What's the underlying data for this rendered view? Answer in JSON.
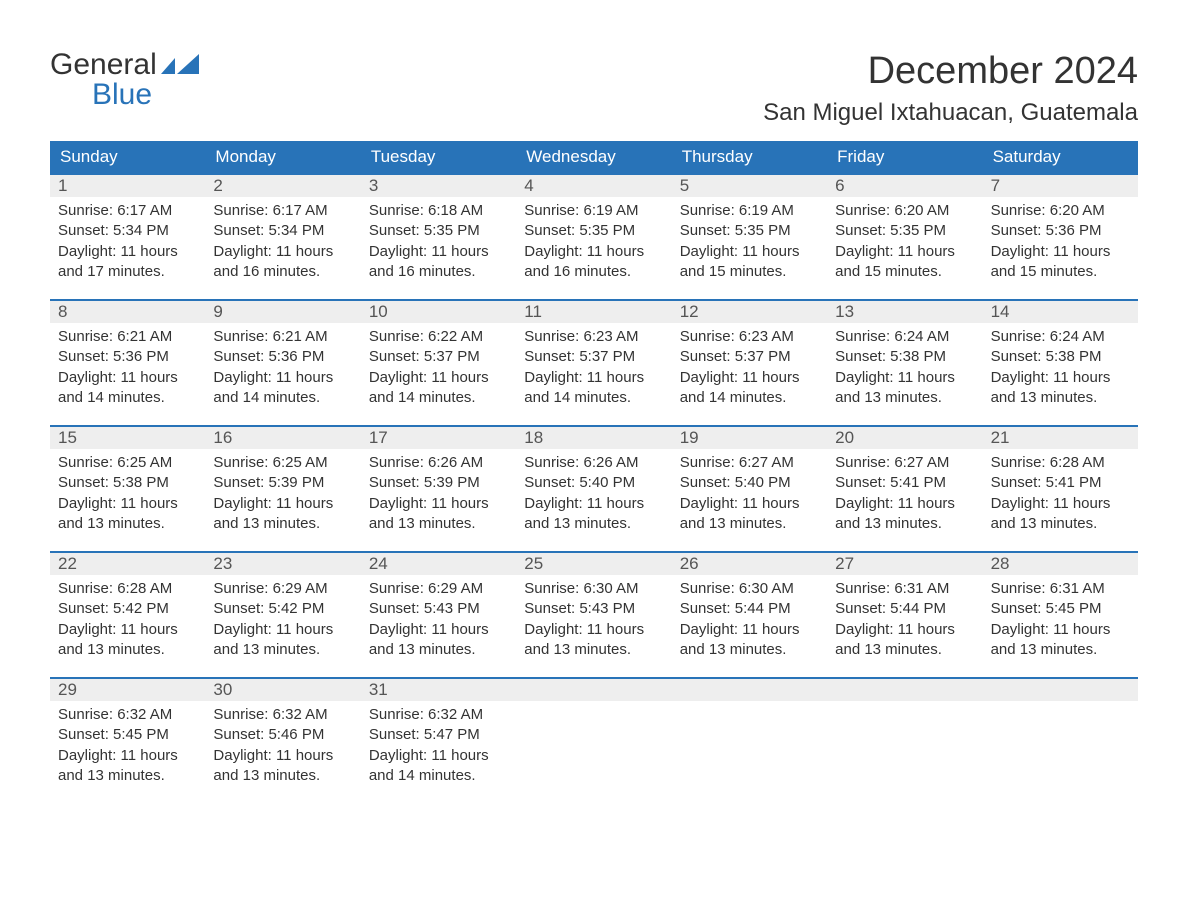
{
  "logo": {
    "text_top": "General",
    "text_bottom": "Blue",
    "brand_color": "#2873b8"
  },
  "title": "December 2024",
  "location": "San Miguel Ixtahuacan, Guatemala",
  "colors": {
    "header_bg": "#2873b8",
    "header_fg": "#ffffff",
    "daynum_bg": "#eeeeee",
    "text": "#333333",
    "row_border": "#2873b8",
    "page_bg": "#ffffff"
  },
  "weekday_labels": [
    "Sunday",
    "Monday",
    "Tuesday",
    "Wednesday",
    "Thursday",
    "Friday",
    "Saturday"
  ],
  "weeks": [
    [
      {
        "day": "1",
        "sunrise": "Sunrise: 6:17 AM",
        "sunset": "Sunset: 5:34 PM",
        "daylight": "Daylight: 11 hours\nand 17 minutes."
      },
      {
        "day": "2",
        "sunrise": "Sunrise: 6:17 AM",
        "sunset": "Sunset: 5:34 PM",
        "daylight": "Daylight: 11 hours\nand 16 minutes."
      },
      {
        "day": "3",
        "sunrise": "Sunrise: 6:18 AM",
        "sunset": "Sunset: 5:35 PM",
        "daylight": "Daylight: 11 hours\nand 16 minutes."
      },
      {
        "day": "4",
        "sunrise": "Sunrise: 6:19 AM",
        "sunset": "Sunset: 5:35 PM",
        "daylight": "Daylight: 11 hours\nand 16 minutes."
      },
      {
        "day": "5",
        "sunrise": "Sunrise: 6:19 AM",
        "sunset": "Sunset: 5:35 PM",
        "daylight": "Daylight: 11 hours\nand 15 minutes."
      },
      {
        "day": "6",
        "sunrise": "Sunrise: 6:20 AM",
        "sunset": "Sunset: 5:35 PM",
        "daylight": "Daylight: 11 hours\nand 15 minutes."
      },
      {
        "day": "7",
        "sunrise": "Sunrise: 6:20 AM",
        "sunset": "Sunset: 5:36 PM",
        "daylight": "Daylight: 11 hours\nand 15 minutes."
      }
    ],
    [
      {
        "day": "8",
        "sunrise": "Sunrise: 6:21 AM",
        "sunset": "Sunset: 5:36 PM",
        "daylight": "Daylight: 11 hours\nand 14 minutes."
      },
      {
        "day": "9",
        "sunrise": "Sunrise: 6:21 AM",
        "sunset": "Sunset: 5:36 PM",
        "daylight": "Daylight: 11 hours\nand 14 minutes."
      },
      {
        "day": "10",
        "sunrise": "Sunrise: 6:22 AM",
        "sunset": "Sunset: 5:37 PM",
        "daylight": "Daylight: 11 hours\nand 14 minutes."
      },
      {
        "day": "11",
        "sunrise": "Sunrise: 6:23 AM",
        "sunset": "Sunset: 5:37 PM",
        "daylight": "Daylight: 11 hours\nand 14 minutes."
      },
      {
        "day": "12",
        "sunrise": "Sunrise: 6:23 AM",
        "sunset": "Sunset: 5:37 PM",
        "daylight": "Daylight: 11 hours\nand 14 minutes."
      },
      {
        "day": "13",
        "sunrise": "Sunrise: 6:24 AM",
        "sunset": "Sunset: 5:38 PM",
        "daylight": "Daylight: 11 hours\nand 13 minutes."
      },
      {
        "day": "14",
        "sunrise": "Sunrise: 6:24 AM",
        "sunset": "Sunset: 5:38 PM",
        "daylight": "Daylight: 11 hours\nand 13 minutes."
      }
    ],
    [
      {
        "day": "15",
        "sunrise": "Sunrise: 6:25 AM",
        "sunset": "Sunset: 5:38 PM",
        "daylight": "Daylight: 11 hours\nand 13 minutes."
      },
      {
        "day": "16",
        "sunrise": "Sunrise: 6:25 AM",
        "sunset": "Sunset: 5:39 PM",
        "daylight": "Daylight: 11 hours\nand 13 minutes."
      },
      {
        "day": "17",
        "sunrise": "Sunrise: 6:26 AM",
        "sunset": "Sunset: 5:39 PM",
        "daylight": "Daylight: 11 hours\nand 13 minutes."
      },
      {
        "day": "18",
        "sunrise": "Sunrise: 6:26 AM",
        "sunset": "Sunset: 5:40 PM",
        "daylight": "Daylight: 11 hours\nand 13 minutes."
      },
      {
        "day": "19",
        "sunrise": "Sunrise: 6:27 AM",
        "sunset": "Sunset: 5:40 PM",
        "daylight": "Daylight: 11 hours\nand 13 minutes."
      },
      {
        "day": "20",
        "sunrise": "Sunrise: 6:27 AM",
        "sunset": "Sunset: 5:41 PM",
        "daylight": "Daylight: 11 hours\nand 13 minutes."
      },
      {
        "day": "21",
        "sunrise": "Sunrise: 6:28 AM",
        "sunset": "Sunset: 5:41 PM",
        "daylight": "Daylight: 11 hours\nand 13 minutes."
      }
    ],
    [
      {
        "day": "22",
        "sunrise": "Sunrise: 6:28 AM",
        "sunset": "Sunset: 5:42 PM",
        "daylight": "Daylight: 11 hours\nand 13 minutes."
      },
      {
        "day": "23",
        "sunrise": "Sunrise: 6:29 AM",
        "sunset": "Sunset: 5:42 PM",
        "daylight": "Daylight: 11 hours\nand 13 minutes."
      },
      {
        "day": "24",
        "sunrise": "Sunrise: 6:29 AM",
        "sunset": "Sunset: 5:43 PM",
        "daylight": "Daylight: 11 hours\nand 13 minutes."
      },
      {
        "day": "25",
        "sunrise": "Sunrise: 6:30 AM",
        "sunset": "Sunset: 5:43 PM",
        "daylight": "Daylight: 11 hours\nand 13 minutes."
      },
      {
        "day": "26",
        "sunrise": "Sunrise: 6:30 AM",
        "sunset": "Sunset: 5:44 PM",
        "daylight": "Daylight: 11 hours\nand 13 minutes."
      },
      {
        "day": "27",
        "sunrise": "Sunrise: 6:31 AM",
        "sunset": "Sunset: 5:44 PM",
        "daylight": "Daylight: 11 hours\nand 13 minutes."
      },
      {
        "day": "28",
        "sunrise": "Sunrise: 6:31 AM",
        "sunset": "Sunset: 5:45 PM",
        "daylight": "Daylight: 11 hours\nand 13 minutes."
      }
    ],
    [
      {
        "day": "29",
        "sunrise": "Sunrise: 6:32 AM",
        "sunset": "Sunset: 5:45 PM",
        "daylight": "Daylight: 11 hours\nand 13 minutes."
      },
      {
        "day": "30",
        "sunrise": "Sunrise: 6:32 AM",
        "sunset": "Sunset: 5:46 PM",
        "daylight": "Daylight: 11 hours\nand 13 minutes."
      },
      {
        "day": "31",
        "sunrise": "Sunrise: 6:32 AM",
        "sunset": "Sunset: 5:47 PM",
        "daylight": "Daylight: 11 hours\nand 14 minutes."
      },
      {
        "day": "",
        "sunrise": "",
        "sunset": "",
        "daylight": ""
      },
      {
        "day": "",
        "sunrise": "",
        "sunset": "",
        "daylight": ""
      },
      {
        "day": "",
        "sunrise": "",
        "sunset": "",
        "daylight": ""
      },
      {
        "day": "",
        "sunrise": "",
        "sunset": "",
        "daylight": ""
      }
    ]
  ]
}
